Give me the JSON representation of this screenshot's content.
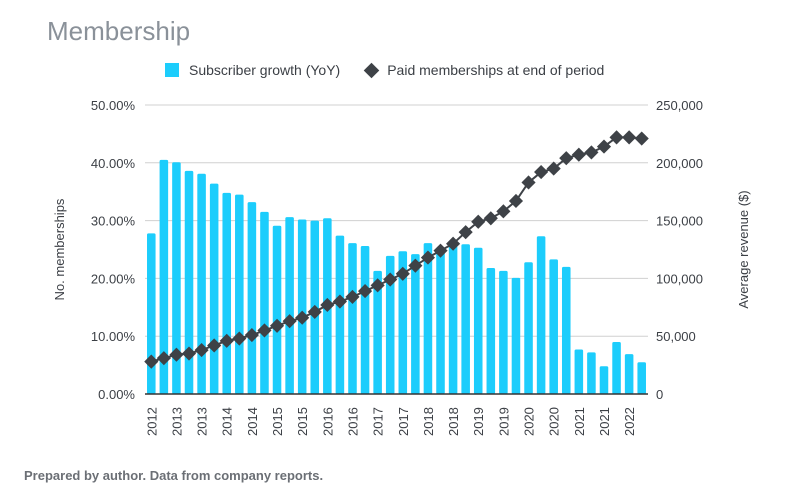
{
  "title": "Membership",
  "footer": "Prepared by author. Data from company reports.",
  "chart_data": {
    "type": "bar",
    "title": "Membership",
    "ylabel": "No. memberships",
    "y2label": "Average revenue ($)",
    "ylim": [
      0,
      50
    ],
    "y2lim": [
      0,
      250000
    ],
    "y_ticks": [
      "0.00%",
      "10.00%",
      "20.00%",
      "30.00%",
      "40.00%",
      "50.00%"
    ],
    "y2_ticks": [
      "0",
      "50,000",
      "100,000",
      "150,000",
      "200,000",
      "250,000"
    ],
    "x_tick_labels": [
      "2012",
      "2013",
      "2013",
      "2014",
      "2014",
      "2015",
      "2015",
      "2016",
      "2016",
      "2017",
      "2017",
      "2018",
      "2018",
      "2019",
      "2019",
      "2020",
      "2020",
      "2021",
      "2021",
      "2022"
    ],
    "grid": true,
    "legend": "top",
    "colors": {
      "bar": "#1ccdfc",
      "line": "#3e4247"
    },
    "series": [
      {
        "name": "Subscriber growth (YoY)",
        "type": "bar",
        "axis": "left",
        "values": [
          27.8,
          40.5,
          40.1,
          38.6,
          38.1,
          36.4,
          34.8,
          34.5,
          33.2,
          31.5,
          29.1,
          30.6,
          30.2,
          30.0,
          30.4,
          27.4,
          26.1,
          25.6,
          21.3,
          23.9,
          24.7,
          24.2,
          26.1,
          24.9,
          25.6,
          25.9,
          25.3,
          21.8,
          21.3,
          20.1,
          22.8,
          27.3,
          23.3,
          22.0,
          7.7,
          7.2,
          4.8,
          9.0,
          6.9,
          5.5
        ]
      },
      {
        "name": "Paid memberships at end of period",
        "type": "line",
        "axis": "right",
        "values": [
          28000,
          31000,
          34000,
          35000,
          38000,
          42000,
          46000,
          48000,
          51000,
          55000,
          59000,
          63000,
          66000,
          71000,
          77000,
          80000,
          84000,
          89000,
          94000,
          99000,
          104000,
          111000,
          118000,
          124000,
          130000,
          140000,
          149000,
          152000,
          158000,
          167000,
          183000,
          192000,
          195000,
          204000,
          207000,
          209000,
          214000,
          222000,
          222000,
          221000
        ]
      }
    ]
  }
}
